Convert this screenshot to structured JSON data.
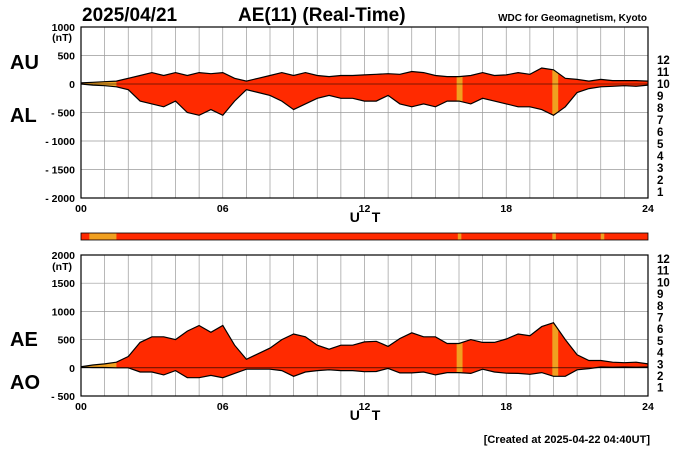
{
  "header": {
    "date": "2025/04/21",
    "title": "AE(11) (Real-Time)",
    "source": "WDC for Geomagnetism, Kyoto"
  },
  "footer": {
    "created": "[Created at 2025-04-22 04:40UT]"
  },
  "colors": {
    "fill": "#ff2a00",
    "quiet": "#f0a020",
    "line": "#000000",
    "grid": "#9a9a9a"
  },
  "station_legend": [
    {
      "label": "12",
      "color": "#ff007f"
    },
    {
      "label": "11",
      "color": "#ff0000"
    },
    {
      "label": "10",
      "color": "#ff9900"
    },
    {
      "label": "9",
      "color": "#ffff00"
    },
    {
      "label": "8",
      "color": "#88ff00"
    },
    {
      "label": "7",
      "color": "#00dddd"
    },
    {
      "label": "6",
      "color": "#0088ff"
    },
    {
      "label": "5",
      "color": "#0000ee"
    },
    {
      "label": "4",
      "color": "#dd00dd"
    },
    {
      "label": "3",
      "color": "#000000"
    },
    {
      "label": "2",
      "color": "#777777"
    },
    {
      "label": "1",
      "color": "#cccccc"
    }
  ],
  "chart_data": [
    {
      "type": "area",
      "panel": "AU/AL",
      "upper_label": "AU",
      "lower_label": "AL",
      "unit": "(nT)",
      "xlabel": "U T",
      "xlim": [
        0,
        24
      ],
      "xticks": [
        "00",
        "06",
        "12",
        "18",
        "24"
      ],
      "ylim": [
        -2000,
        1000
      ],
      "yticks": [
        {
          "value": 1000,
          "label": "1000"
        },
        {
          "value": 500,
          "label": "500"
        },
        {
          "value": 0,
          "label": "0"
        },
        {
          "value": -500,
          "label": "- 500"
        },
        {
          "value": -1000,
          "label": "- 1000"
        },
        {
          "value": -1500,
          "label": "- 1500"
        },
        {
          "value": -2000,
          "label": "- 2000"
        }
      ],
      "grid": true,
      "x": [
        0,
        0.5,
        1,
        1.5,
        2,
        2.5,
        3,
        3.5,
        4,
        4.5,
        5,
        5.5,
        6,
        6.5,
        7,
        7.5,
        8,
        8.5,
        9,
        9.5,
        10,
        10.5,
        11,
        11.5,
        12,
        12.5,
        13,
        13.5,
        14,
        14.5,
        15,
        15.5,
        16,
        16.5,
        17,
        17.5,
        18,
        18.5,
        19,
        19.5,
        20,
        20.5,
        21,
        21.5,
        22,
        22.5,
        23,
        23.5,
        24
      ],
      "series": [
        {
          "name": "AU",
          "values": [
            20,
            30,
            40,
            50,
            100,
            150,
            200,
            150,
            200,
            150,
            200,
            180,
            200,
            100,
            50,
            100,
            150,
            200,
            150,
            200,
            150,
            130,
            150,
            150,
            160,
            170,
            180,
            170,
            220,
            200,
            150,
            130,
            130,
            150,
            200,
            150,
            160,
            200,
            170,
            280,
            250,
            100,
            80,
            50,
            80,
            60,
            60,
            60,
            50
          ]
        },
        {
          "name": "AL",
          "values": [
            0,
            -20,
            -30,
            -50,
            -100,
            -300,
            -350,
            -400,
            -300,
            -500,
            -550,
            -450,
            -550,
            -300,
            -100,
            -150,
            -200,
            -300,
            -450,
            -350,
            -250,
            -200,
            -250,
            -250,
            -300,
            -300,
            -200,
            -350,
            -400,
            -350,
            -400,
            -300,
            -300,
            -350,
            -250,
            -300,
            -350,
            -400,
            -400,
            -450,
            -550,
            -400,
            -150,
            -80,
            -50,
            -40,
            -30,
            -40,
            -20
          ]
        }
      ],
      "quiet_intervals": [
        [
          0.1,
          1.5
        ],
        [
          15.9,
          16.15
        ],
        [
          19.95,
          20.2
        ]
      ]
    },
    {
      "type": "area",
      "panel": "AE/AO",
      "upper_label": "AE",
      "lower_label": "AO",
      "unit": "(nT)",
      "xlabel": "U T",
      "xlim": [
        0,
        24
      ],
      "xticks": [
        "00",
        "06",
        "12",
        "18",
        "24"
      ],
      "ylim": [
        -500,
        2000
      ],
      "yticks": [
        {
          "value": 2000,
          "label": "2000"
        },
        {
          "value": 1500,
          "label": "1500"
        },
        {
          "value": 1000,
          "label": "1000"
        },
        {
          "value": 500,
          "label": "500"
        },
        {
          "value": 0,
          "label": "0"
        },
        {
          "value": -500,
          "label": "- 500"
        }
      ],
      "grid": true,
      "x": [
        0,
        0.5,
        1,
        1.5,
        2,
        2.5,
        3,
        3.5,
        4,
        4.5,
        5,
        5.5,
        6,
        6.5,
        7,
        7.5,
        8,
        8.5,
        9,
        9.5,
        10,
        10.5,
        11,
        11.5,
        12,
        12.5,
        13,
        13.5,
        14,
        14.5,
        15,
        15.5,
        16,
        16.5,
        17,
        17.5,
        18,
        18.5,
        19,
        19.5,
        20,
        20.5,
        21,
        21.5,
        22,
        22.5,
        23,
        23.5,
        24
      ],
      "series": [
        {
          "name": "AE",
          "values": [
            20,
            50,
            70,
            100,
            200,
            450,
            550,
            550,
            500,
            650,
            750,
            630,
            750,
            400,
            150,
            250,
            350,
            500,
            600,
            550,
            400,
            330,
            400,
            400,
            460,
            470,
            380,
            520,
            620,
            550,
            550,
            430,
            430,
            500,
            450,
            450,
            510,
            600,
            570,
            730,
            800,
            500,
            230,
            130,
            130,
            100,
            90,
            100,
            70
          ]
        },
        {
          "name": "AO",
          "values": [
            10,
            5,
            5,
            0,
            0,
            -75,
            -75,
            -125,
            -50,
            -175,
            -175,
            -135,
            -175,
            -100,
            -25,
            -25,
            -25,
            -50,
            -150,
            -75,
            -50,
            -35,
            -50,
            -50,
            -70,
            -65,
            -10,
            -90,
            -90,
            -75,
            -125,
            -85,
            -85,
            -100,
            -25,
            -75,
            -95,
            -100,
            -115,
            -85,
            -150,
            -150,
            -35,
            -15,
            15,
            10,
            15,
            10,
            15
          ]
        }
      ],
      "quiet_intervals": [
        [
          0.1,
          1.5
        ],
        [
          15.9,
          16.15
        ],
        [
          19.95,
          20.2
        ]
      ]
    }
  ]
}
